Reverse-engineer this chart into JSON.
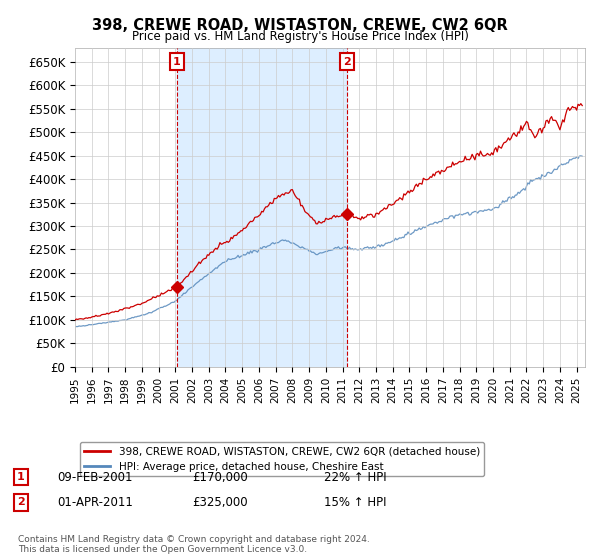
{
  "title": "398, CREWE ROAD, WISTASTON, CREWE, CW2 6QR",
  "subtitle": "Price paid vs. HM Land Registry's House Price Index (HPI)",
  "ylabel_ticks": [
    "£0",
    "£50K",
    "£100K",
    "£150K",
    "£200K",
    "£250K",
    "£300K",
    "£350K",
    "£400K",
    "£450K",
    "£500K",
    "£550K",
    "£600K",
    "£650K"
  ],
  "ytick_values": [
    0,
    50000,
    100000,
    150000,
    200000,
    250000,
    300000,
    350000,
    400000,
    450000,
    500000,
    550000,
    600000,
    650000
  ],
  "ylim": [
    0,
    680000
  ],
  "xlim_start": 1995.0,
  "xlim_end": 2025.5,
  "red_line_label": "398, CREWE ROAD, WISTASTON, CREWE, CW2 6QR (detached house)",
  "blue_line_label": "HPI: Average price, detached house, Cheshire East",
  "point1_label": "1",
  "point1_date": "09-FEB-2001",
  "point1_price": "£170,000",
  "point1_hpi": "22% ↑ HPI",
  "point1_x": 2001.1,
  "point1_y": 170000,
  "point2_label": "2",
  "point2_date": "01-APR-2011",
  "point2_price": "£325,000",
  "point2_hpi": "15% ↑ HPI",
  "point2_x": 2011.25,
  "point2_y": 325000,
  "vline1_x": 2001.1,
  "vline2_x": 2011.25,
  "footer": "Contains HM Land Registry data © Crown copyright and database right 2024.\nThis data is licensed under the Open Government Licence v3.0.",
  "red_color": "#cc0000",
  "blue_color": "#5588bb",
  "shade_color": "#ddeeff",
  "vline_color": "#cc0000",
  "grid_color": "#cccccc",
  "background_color": "#ffffff"
}
